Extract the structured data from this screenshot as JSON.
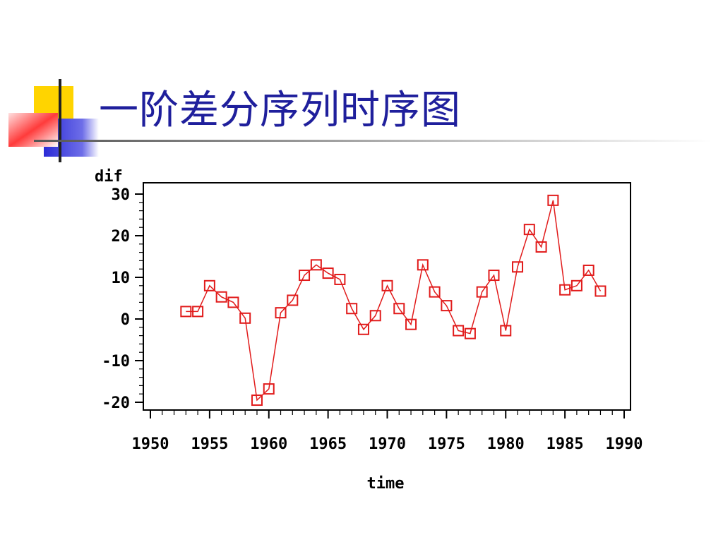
{
  "slide": {
    "title": "一阶差分序列时序图"
  },
  "colors": {
    "title": "#1f1f9c",
    "series": "#e11b1b",
    "deco_yellow": "#ffd400",
    "deco_red": "#ff3b3b",
    "deco_blue": "#2b2bd6"
  },
  "chart_data": {
    "type": "line",
    "xlabel": "time",
    "ylabel": "dif",
    "xlim": [
      1950,
      1990
    ],
    "ylim": [
      -22,
      32
    ],
    "x_ticks": [
      1950,
      1955,
      1960,
      1965,
      1970,
      1975,
      1980,
      1985,
      1990
    ],
    "y_ticks": [
      -20,
      -10,
      0,
      10,
      20,
      30
    ],
    "grid": false,
    "legend": "none",
    "marker": "square",
    "series": [
      {
        "x": [
          1953,
          1954,
          1955,
          1956,
          1957,
          1958,
          1959,
          1960,
          1961,
          1962,
          1963,
          1964,
          1965,
          1966,
          1967,
          1968,
          1969,
          1970,
          1971,
          1972,
          1973,
          1974,
          1975,
          1976,
          1977,
          1978,
          1979,
          1980,
          1981,
          1982,
          1983,
          1984,
          1985,
          1986,
          1987,
          1988
        ],
        "values": [
          1.8,
          1.8,
          8,
          5.3,
          4,
          0.2,
          -19.5,
          -16.8,
          1.5,
          4.5,
          10.5,
          13,
          11,
          9.5,
          2.5,
          -2.5,
          0.8,
          8,
          2.5,
          -1.3,
          13,
          6.5,
          3.2,
          -2.8,
          -3.5,
          6.5,
          10.5,
          -2.8,
          12.5,
          21.5,
          17.3,
          28.5,
          7,
          8,
          11.7,
          6.7
        ]
      }
    ]
  }
}
